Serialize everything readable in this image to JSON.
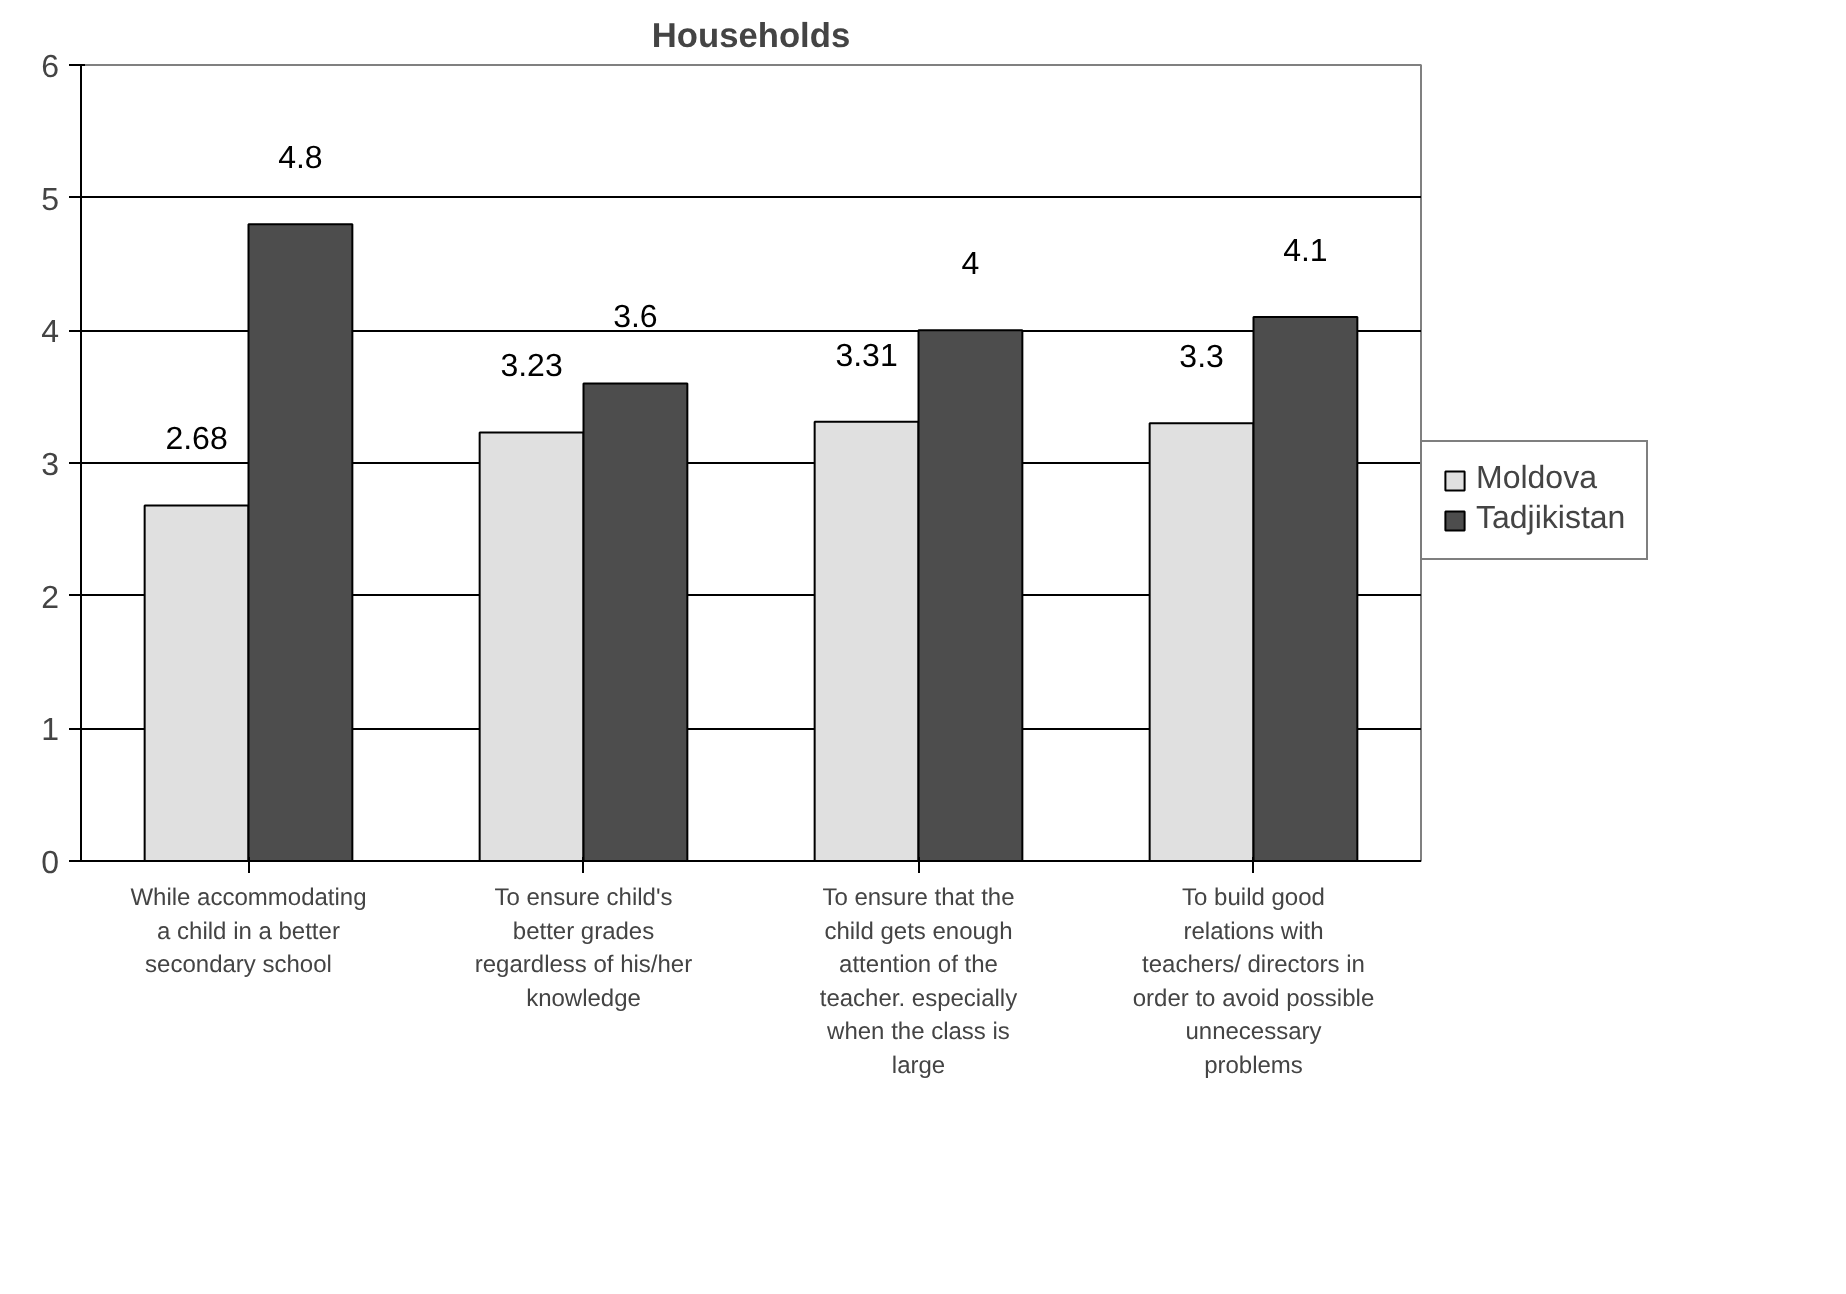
{
  "chart_data": {
    "type": "bar",
    "title": "Households",
    "categories": [
      "While accommodating\na child in a better\nsecondary    school",
      "To ensure child's\nbetter grades\nregardless of his/her\nknowledge",
      "To ensure that the\nchild gets enough\nattention of the\nteacher. especially\nwhen the class is\nlarge",
      "To build good\nrelations with\nteachers/ directors in\norder to avoid possible\nunnecessary\nproblems"
    ],
    "series": [
      {
        "name": "Moldova",
        "color": "#e0e0e0",
        "values": [
          2.68,
          3.23,
          3.31,
          3.3
        ]
      },
      {
        "name": "Tadjikistan",
        "color": "#4d4d4d",
        "values": [
          4.8,
          3.6,
          4,
          4.1
        ]
      }
    ],
    "ylim": [
      0,
      6
    ],
    "yticks": [
      0,
      1,
      2,
      3,
      4,
      5,
      6
    ],
    "grid": "y",
    "legend": "right",
    "data_labels": true
  }
}
